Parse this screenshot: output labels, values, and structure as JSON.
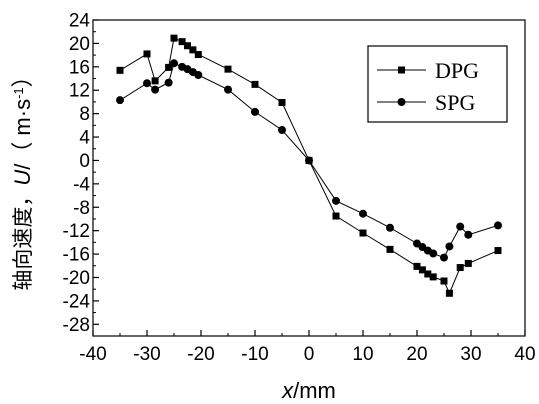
{
  "chart_data": {
    "type": "line",
    "xlabel": {
      "var": "x",
      "unit": "/mm"
    },
    "ylabel": {
      "cjk": "轴向速度，",
      "var": "U",
      "unit_open": "/（ m·s",
      "unit_exp": "-1",
      "unit_close": "）"
    },
    "xlim": [
      -40,
      40
    ],
    "ylim": [
      -30,
      24
    ],
    "x_ticks": [
      -40,
      -30,
      -20,
      -10,
      0,
      10,
      20,
      30,
      40
    ],
    "y_ticks": [
      -28,
      -24,
      -20,
      -16,
      -12,
      -8,
      -4,
      0,
      4,
      8,
      12,
      16,
      20,
      24
    ],
    "x_tick_labels": [
      "-40",
      "-30",
      "-20",
      "-10",
      "0",
      "10",
      "20",
      "30",
      "40"
    ],
    "y_tick_labels": [
      "-28",
      "-24",
      "-20",
      "-16",
      "-12",
      "-8",
      "-4",
      "0",
      "4",
      "8",
      "12",
      "16",
      "20",
      "24"
    ],
    "grid": false,
    "legend_position": "top-right",
    "series": [
      {
        "name": "DPG",
        "marker": "square",
        "color": "#000000",
        "x": [
          -35,
          -30,
          -28.5,
          -26,
          -25,
          -23.5,
          -22.5,
          -21.5,
          -20.5,
          -15,
          -10,
          -5,
          0,
          5,
          10,
          15,
          20,
          21,
          22,
          23,
          25,
          26,
          28,
          29.5,
          35
        ],
        "y": [
          15.4,
          18.2,
          13.6,
          15.9,
          20.9,
          20.3,
          19.6,
          18.9,
          18.1,
          15.6,
          13.0,
          9.9,
          0,
          -9.5,
          -12.4,
          -15.2,
          -18.1,
          -18.7,
          -19.4,
          -19.9,
          -20.6,
          -22.7,
          -18.3,
          -17.6,
          -15.4
        ]
      },
      {
        "name": "SPG",
        "marker": "circle",
        "color": "#000000",
        "x": [
          -35,
          -30,
          -28.5,
          -26,
          -25,
          -23.5,
          -22.5,
          -21.5,
          -20.5,
          -15,
          -10,
          -5,
          0,
          5,
          10,
          15,
          20,
          21,
          22,
          23,
          25,
          26,
          28,
          29.5,
          35
        ],
        "y": [
          10.3,
          13.2,
          12.1,
          13.3,
          16.6,
          16.0,
          15.6,
          15.1,
          14.6,
          12.1,
          8.3,
          5.2,
          0,
          -6.9,
          -9.1,
          -11.5,
          -14.2,
          -14.8,
          -15.4,
          -15.9,
          -16.6,
          -14.7,
          -11.3,
          -12.7,
          -11.1
        ]
      }
    ]
  }
}
